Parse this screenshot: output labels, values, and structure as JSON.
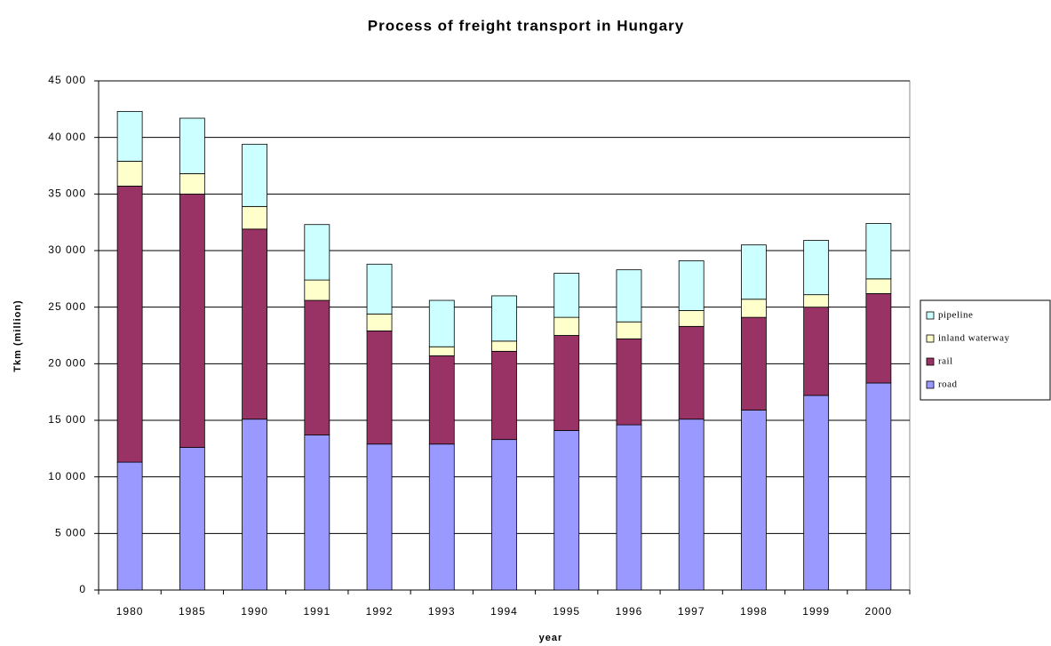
{
  "chart_data": {
    "type": "stacked_bar",
    "title": "Process of freight transport in Hungary",
    "x_label": "year",
    "y_label": "Tkm (million)",
    "categories": [
      "1980",
      "1985",
      "1990",
      "1991",
      "1992",
      "1993",
      "1994",
      "1995",
      "1996",
      "1997",
      "1998",
      "1999",
      "2000"
    ],
    "series": [
      {
        "name": "road",
        "color": "#9999ff",
        "values": [
          11300,
          12600,
          15100,
          13700,
          12900,
          12900,
          13300,
          14100,
          14600,
          15100,
          15900,
          17200,
          18300
        ]
      },
      {
        "name": "rail",
        "color": "#993366",
        "values": [
          24400,
          22400,
          16800,
          11900,
          10000,
          7800,
          7800,
          8400,
          7600,
          8200,
          8200,
          7800,
          7900
        ]
      },
      {
        "name": "inland waterway",
        "color": "#ffffcc",
        "values": [
          2200,
          1800,
          2000,
          1800,
          1500,
          800,
          900,
          1600,
          1500,
          1400,
          1600,
          1100,
          1300
        ]
      },
      {
        "name": "pipeline",
        "color": "#ccffff",
        "values": [
          4400,
          4900,
          5500,
          4900,
          4400,
          4100,
          4000,
          3900,
          4600,
          4400,
          4800,
          4800,
          4900
        ]
      }
    ],
    "ylim": [
      0,
      45000
    ],
    "yticks": [
      0,
      {
        "value": 5000,
        "label": "5 000"
      },
      {
        "value": 10000,
        "label": "10 000"
      },
      {
        "value": 15000,
        "label": "15 000"
      },
      {
        "value": 20000,
        "label": "20 000"
      },
      {
        "value": 25000,
        "label": "25 000"
      },
      {
        "value": 30000,
        "label": "30 000"
      },
      {
        "value": 35000,
        "label": "35 000"
      },
      {
        "value": 40000,
        "label": "40 000"
      },
      {
        "value": 45000,
        "label": "45 000"
      }
    ],
    "grid": true,
    "legend": "right"
  }
}
